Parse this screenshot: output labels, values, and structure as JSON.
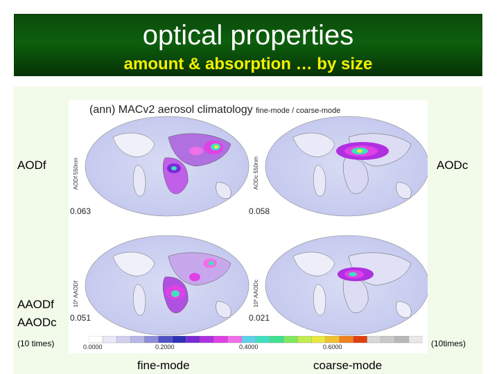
{
  "header": {
    "title": "optical properties",
    "subtitle": "amount & absorption … by size"
  },
  "labels": {
    "aodf": "AODf",
    "aodc": "AODc",
    "aaodf": "AAODf",
    "aaodc": "AAODc",
    "ten_times_left": "(10 times)",
    "ten_times_right": "(10times)",
    "fine_mode": "fine-mode",
    "coarse_mode": "coarse-mode"
  },
  "figure": {
    "title_main": "(ann) MACv2  aerosol climatology",
    "title_sub": "fine-mode / coarse-mode",
    "globes": [
      {
        "axis_label": "AODf 550nm",
        "value": "0.063"
      },
      {
        "axis_label": "AODc 550nm",
        "value": "0.058"
      },
      {
        "axis_label": "10* AAODf",
        "value": "0.051"
      },
      {
        "axis_label": "10* AAODc",
        "value": "0.021"
      }
    ],
    "colorbar_ticks": [
      "0.0000",
      "0.2000",
      "0.4000",
      "0.6000"
    ],
    "colorbar_colors": [
      "#ffffff",
      "#e8e8f6",
      "#d0d0ee",
      "#b8b8e6",
      "#8c8cd8",
      "#5050c8",
      "#3030b8",
      "#7a2ad6",
      "#b030e0",
      "#e040e6",
      "#f070e8",
      "#60d0e8",
      "#40e0c0",
      "#40e090",
      "#80e860",
      "#c0ec50",
      "#e8e840",
      "#f0c030",
      "#f08020",
      "#e04010",
      "#d8d8d8",
      "#c8c8c8",
      "#b8b8b8",
      "#e8e8e8"
    ]
  },
  "colors": {
    "banner": "#0d5f0d",
    "title": "#ffffff",
    "subtitle": "#f4f000",
    "panel_bg": "#f2faea"
  }
}
